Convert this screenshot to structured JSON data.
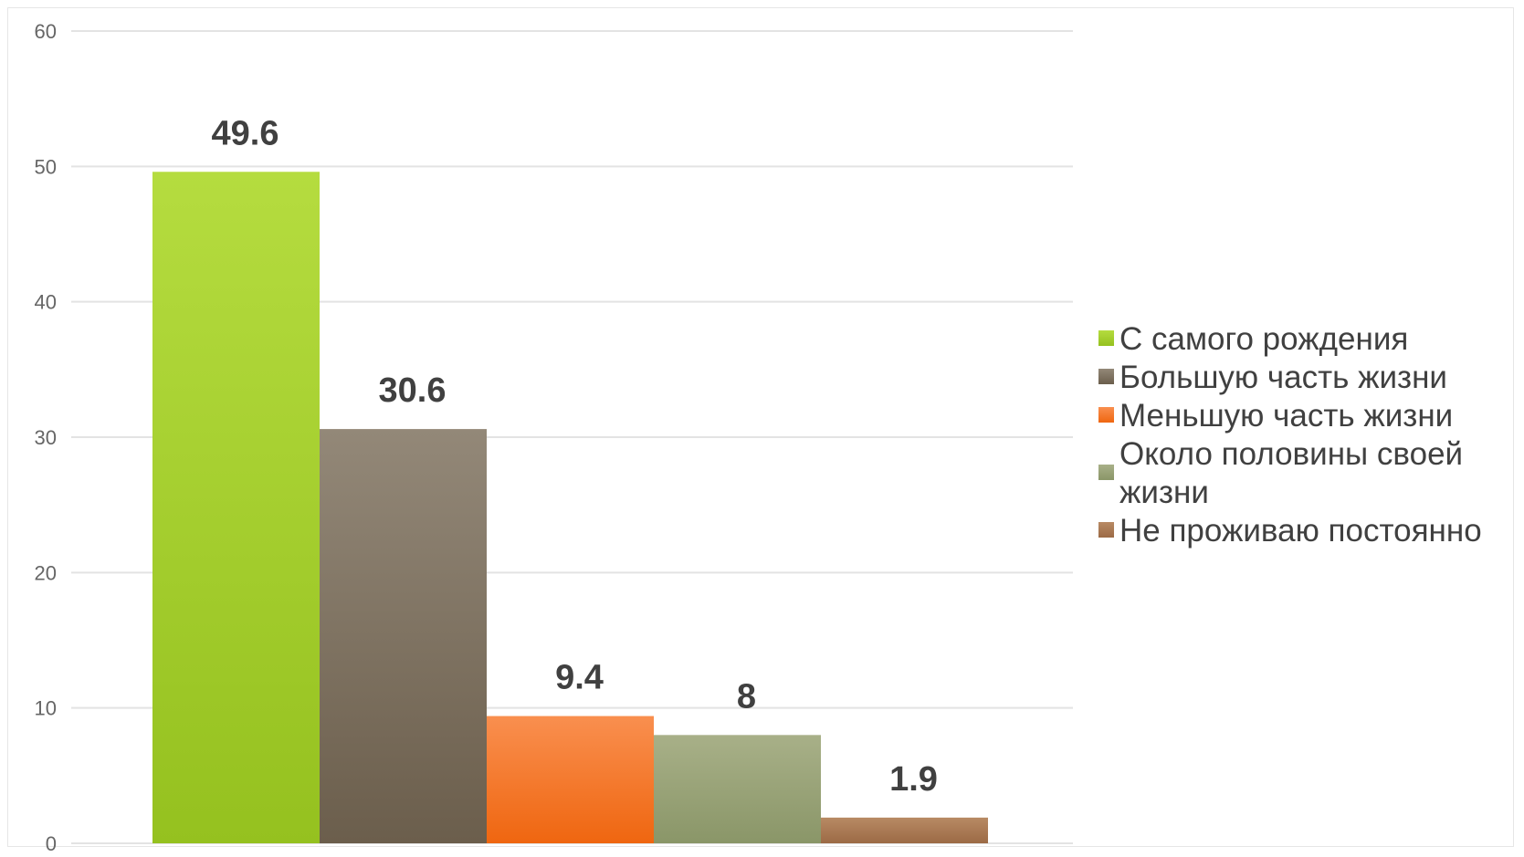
{
  "chart_data": {
    "type": "bar",
    "title": "",
    "xlabel": "",
    "ylabel": "",
    "ylim": [
      0,
      60
    ],
    "yticks": [
      0,
      10,
      20,
      30,
      40,
      50,
      60
    ],
    "grid": true,
    "legend_position": "right",
    "series": [
      {
        "name": "С самого рождения",
        "value": 49.6,
        "label": "49.6",
        "color": "#95c11f",
        "color_light": "#b5dc3f",
        "legend_lines": [
          "С самого рождения"
        ]
      },
      {
        "name": "Большую часть жизни",
        "value": 30.6,
        "label": "30.6",
        "color": "#6b5e4c",
        "color_light": "#938878",
        "legend_lines": [
          "Большую часть жизни"
        ]
      },
      {
        "name": "Меньшую часть жизни",
        "value": 9.4,
        "label": "9.4",
        "color": "#ef6610",
        "color_light": "#f98f4f",
        "legend_lines": [
          "Меньшую часть жизни"
        ]
      },
      {
        "name": "Около половины своей жизни",
        "value": 8,
        "label": "8",
        "color": "#8a9668",
        "color_light": "#a8b088",
        "legend_lines": [
          "Около половины своей",
          "жизни"
        ]
      },
      {
        "name": "Не проживаю постоянно",
        "value": 1.9,
        "label": "1.9",
        "color": "#9c6a45",
        "color_light": "#b88a64",
        "legend_lines": [
          "Не проживаю постоянно"
        ]
      }
    ]
  }
}
